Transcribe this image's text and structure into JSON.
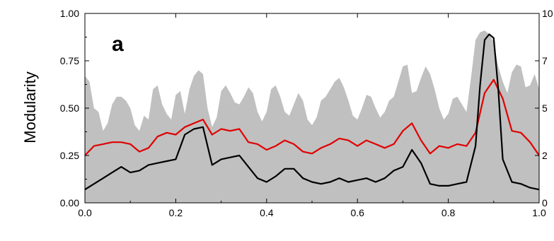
{
  "chart_data": {
    "type": "line",
    "panel_label": "a",
    "ylabel": "Modularity",
    "xlim": [
      0.0,
      1.0
    ],
    "ylim": [
      0.0,
      1.0
    ],
    "xticks": [
      0.0,
      0.2,
      0.4,
      0.6,
      0.8,
      1.0
    ],
    "xtick_labels": [
      "0.0",
      "0.2",
      "0.4",
      "0.6",
      "0.8",
      "1.0"
    ],
    "yticks": [
      0.0,
      0.25,
      0.5,
      0.75,
      1.0
    ],
    "ytick_labels": [
      "0.00",
      "0.25",
      "0.50",
      "0.75",
      "1.00"
    ],
    "right_axis_tick_labels": [
      "0",
      "2",
      "5",
      "7",
      "10"
    ],
    "colors": {
      "area": "#c0c0c0",
      "red": "#e00000",
      "black": "#000000"
    },
    "series": [
      {
        "style": "area",
        "color": "#c0c0c0",
        "x": [
          0.0,
          0.01,
          0.02,
          0.03,
          0.04,
          0.05,
          0.06,
          0.07,
          0.08,
          0.09,
          0.1,
          0.11,
          0.12,
          0.13,
          0.14,
          0.15,
          0.16,
          0.17,
          0.18,
          0.19,
          0.2,
          0.21,
          0.22,
          0.23,
          0.24,
          0.25,
          0.26,
          0.27,
          0.28,
          0.29,
          0.3,
          0.31,
          0.32,
          0.33,
          0.34,
          0.35,
          0.36,
          0.37,
          0.38,
          0.39,
          0.4,
          0.41,
          0.42,
          0.43,
          0.44,
          0.45,
          0.46,
          0.47,
          0.48,
          0.49,
          0.5,
          0.51,
          0.52,
          0.53,
          0.54,
          0.55,
          0.56,
          0.57,
          0.58,
          0.59,
          0.6,
          0.61,
          0.62,
          0.63,
          0.64,
          0.65,
          0.66,
          0.67,
          0.68,
          0.69,
          0.7,
          0.71,
          0.72,
          0.73,
          0.74,
          0.75,
          0.76,
          0.77,
          0.78,
          0.79,
          0.8,
          0.81,
          0.82,
          0.83,
          0.84,
          0.85,
          0.86,
          0.87,
          0.88,
          0.89,
          0.9,
          0.91,
          0.92,
          0.93,
          0.94,
          0.95,
          0.96,
          0.97,
          0.98,
          0.99,
          1.0
        ],
        "y": [
          0.67,
          0.64,
          0.5,
          0.48,
          0.38,
          0.42,
          0.52,
          0.56,
          0.56,
          0.54,
          0.5,
          0.41,
          0.38,
          0.46,
          0.44,
          0.6,
          0.62,
          0.52,
          0.47,
          0.44,
          0.57,
          0.59,
          0.47,
          0.6,
          0.67,
          0.7,
          0.68,
          0.5,
          0.4,
          0.45,
          0.59,
          0.62,
          0.58,
          0.53,
          0.52,
          0.56,
          0.61,
          0.58,
          0.48,
          0.43,
          0.48,
          0.6,
          0.62,
          0.56,
          0.48,
          0.46,
          0.52,
          0.58,
          0.54,
          0.44,
          0.41,
          0.45,
          0.54,
          0.56,
          0.6,
          0.64,
          0.66,
          0.61,
          0.54,
          0.46,
          0.44,
          0.5,
          0.57,
          0.56,
          0.5,
          0.45,
          0.48,
          0.54,
          0.56,
          0.64,
          0.72,
          0.73,
          0.58,
          0.59,
          0.66,
          0.72,
          0.68,
          0.6,
          0.5,
          0.44,
          0.47,
          0.55,
          0.56,
          0.52,
          0.48,
          0.66,
          0.86,
          0.9,
          0.91,
          0.89,
          0.85,
          0.72,
          0.64,
          0.58,
          0.69,
          0.73,
          0.72,
          0.61,
          0.62,
          0.68,
          0.6
        ]
      },
      {
        "style": "line",
        "color": "#e00000",
        "x": [
          0.0,
          0.02,
          0.04,
          0.06,
          0.08,
          0.1,
          0.12,
          0.14,
          0.16,
          0.18,
          0.2,
          0.22,
          0.24,
          0.26,
          0.28,
          0.3,
          0.32,
          0.34,
          0.36,
          0.38,
          0.4,
          0.42,
          0.44,
          0.46,
          0.48,
          0.5,
          0.52,
          0.54,
          0.56,
          0.58,
          0.6,
          0.62,
          0.64,
          0.66,
          0.68,
          0.7,
          0.72,
          0.74,
          0.76,
          0.78,
          0.8,
          0.82,
          0.84,
          0.86,
          0.88,
          0.9,
          0.92,
          0.94,
          0.96,
          0.98,
          1.0
        ],
        "y": [
          0.25,
          0.3,
          0.31,
          0.32,
          0.32,
          0.31,
          0.27,
          0.29,
          0.35,
          0.37,
          0.36,
          0.4,
          0.42,
          0.44,
          0.36,
          0.39,
          0.38,
          0.39,
          0.32,
          0.31,
          0.28,
          0.3,
          0.33,
          0.31,
          0.27,
          0.26,
          0.29,
          0.31,
          0.34,
          0.33,
          0.3,
          0.33,
          0.31,
          0.29,
          0.31,
          0.38,
          0.42,
          0.33,
          0.26,
          0.3,
          0.29,
          0.31,
          0.3,
          0.37,
          0.58,
          0.65,
          0.55,
          0.38,
          0.37,
          0.32,
          0.25
        ]
      },
      {
        "style": "line",
        "color": "#000000",
        "x": [
          0.0,
          0.02,
          0.04,
          0.06,
          0.08,
          0.1,
          0.12,
          0.14,
          0.16,
          0.18,
          0.2,
          0.22,
          0.24,
          0.26,
          0.28,
          0.3,
          0.32,
          0.34,
          0.36,
          0.38,
          0.4,
          0.42,
          0.44,
          0.46,
          0.48,
          0.5,
          0.52,
          0.54,
          0.56,
          0.58,
          0.6,
          0.62,
          0.64,
          0.66,
          0.68,
          0.7,
          0.72,
          0.74,
          0.76,
          0.78,
          0.8,
          0.82,
          0.84,
          0.86,
          0.87,
          0.88,
          0.89,
          0.9,
          0.91,
          0.92,
          0.94,
          0.96,
          0.98,
          1.0
        ],
        "y": [
          0.07,
          0.1,
          0.13,
          0.16,
          0.19,
          0.16,
          0.17,
          0.2,
          0.21,
          0.22,
          0.23,
          0.36,
          0.39,
          0.4,
          0.2,
          0.23,
          0.24,
          0.25,
          0.19,
          0.13,
          0.11,
          0.14,
          0.18,
          0.18,
          0.13,
          0.11,
          0.1,
          0.11,
          0.13,
          0.11,
          0.12,
          0.13,
          0.11,
          0.13,
          0.17,
          0.19,
          0.28,
          0.21,
          0.1,
          0.09,
          0.09,
          0.1,
          0.11,
          0.3,
          0.62,
          0.86,
          0.89,
          0.87,
          0.6,
          0.23,
          0.11,
          0.1,
          0.08,
          0.07
        ]
      }
    ]
  }
}
